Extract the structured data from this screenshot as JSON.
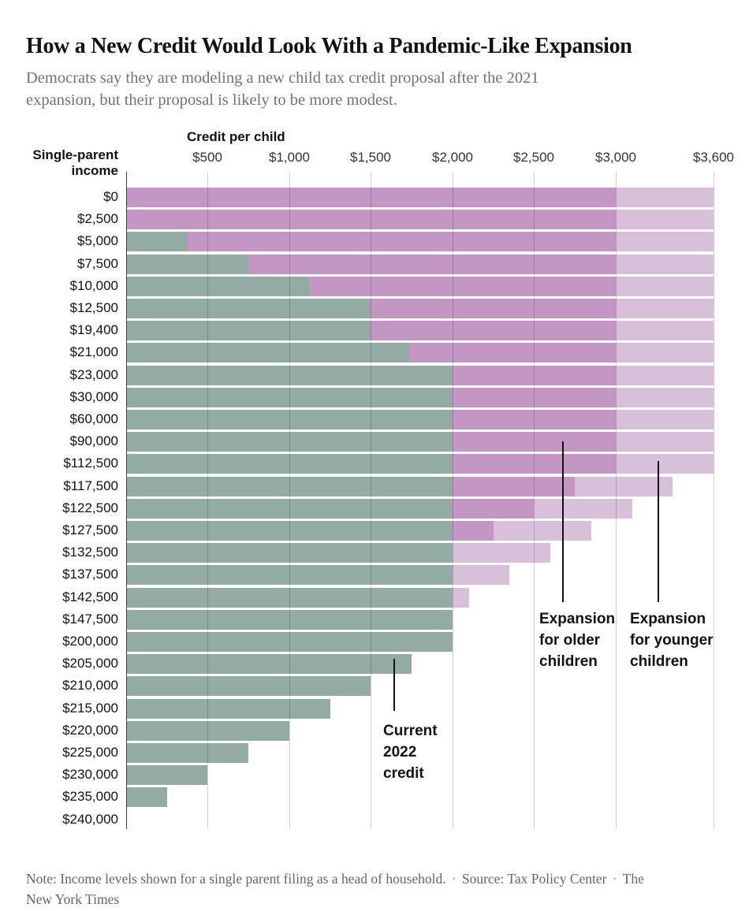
{
  "chart_data": {
    "type": "bar",
    "orientation": "horizontal",
    "title": "How a New Credit Would Look With a Pandemic-Like Expansion",
    "subtitle": "Democrats say they are modeling a new child tax credit proposal after the 2021\nexpansion, but their proposal is likely to be more modest.",
    "x_axis": {
      "label": "Credit per child",
      "tick_labels": [
        "$500",
        "$1,000",
        "$1,500",
        "$2,000",
        "$2,500",
        "$3,000",
        "$3,600"
      ],
      "tick_values": [
        500,
        1000,
        1500,
        2000,
        2500,
        3000,
        3600
      ],
      "xlim": [
        0,
        3600
      ],
      "grid": true
    },
    "y_axis": {
      "label": "Single-parent\nincome"
    },
    "categories": [
      "$0",
      "$2,500",
      "$5,000",
      "$7,500",
      "$10,000",
      "$12,500",
      "$19,400",
      "$21,000",
      "$23,000",
      "$30,000",
      "$60,000",
      "$90,000",
      "$112,500",
      "$117,500",
      "$122,500",
      "$127,500",
      "$132,500",
      "$137,500",
      "$142,500",
      "$147,500",
      "$200,000",
      "$205,000",
      "$210,000",
      "$215,000",
      "$220,000",
      "$225,000",
      "$230,000",
      "$235,000",
      "$240,000"
    ],
    "series": [
      {
        "key": "current",
        "name": "Current 2022 credit",
        "color": "#94aba5",
        "values": [
          0,
          0,
          375,
          750,
          1125,
          1500,
          1500,
          1740,
          2000,
          2000,
          2000,
          2000,
          2000,
          2000,
          2000,
          2000,
          2000,
          2000,
          2000,
          2000,
          2000,
          1750,
          1500,
          1250,
          1000,
          750,
          500,
          250,
          0
        ]
      },
      {
        "key": "older",
        "name": "Expansion for older children",
        "color": "#c496c4",
        "values": [
          3000,
          3000,
          3000,
          3000,
          3000,
          3000,
          3000,
          3000,
          3000,
          3000,
          3000,
          3000,
          3000,
          2750,
          2500,
          2250,
          2000,
          2000,
          2000,
          2000,
          2000,
          1750,
          1500,
          1250,
          1000,
          750,
          500,
          250,
          0
        ]
      },
      {
        "key": "younger",
        "name": "Expansion for younger children",
        "color": "#d8bfda",
        "values": [
          3600,
          3600,
          3600,
          3600,
          3600,
          3600,
          3600,
          3600,
          3600,
          3600,
          3600,
          3600,
          3600,
          3350,
          3100,
          2850,
          2600,
          2350,
          2100,
          2000,
          2000,
          1750,
          1500,
          1250,
          1000,
          750,
          500,
          250,
          0
        ]
      }
    ],
    "annotations": {
      "current": "Current\n2022\ncredit",
      "older": "Expansion\nfor older\nchildren",
      "younger": "Expansion\nfor younger\nchildren"
    },
    "legend_position": "annotated-inline"
  },
  "footer": {
    "note": "Note: Income levels shown for a single parent filing as a head of household.",
    "source": "Source: Tax Policy Center",
    "credit": "The New York Times",
    "separator": "•"
  }
}
